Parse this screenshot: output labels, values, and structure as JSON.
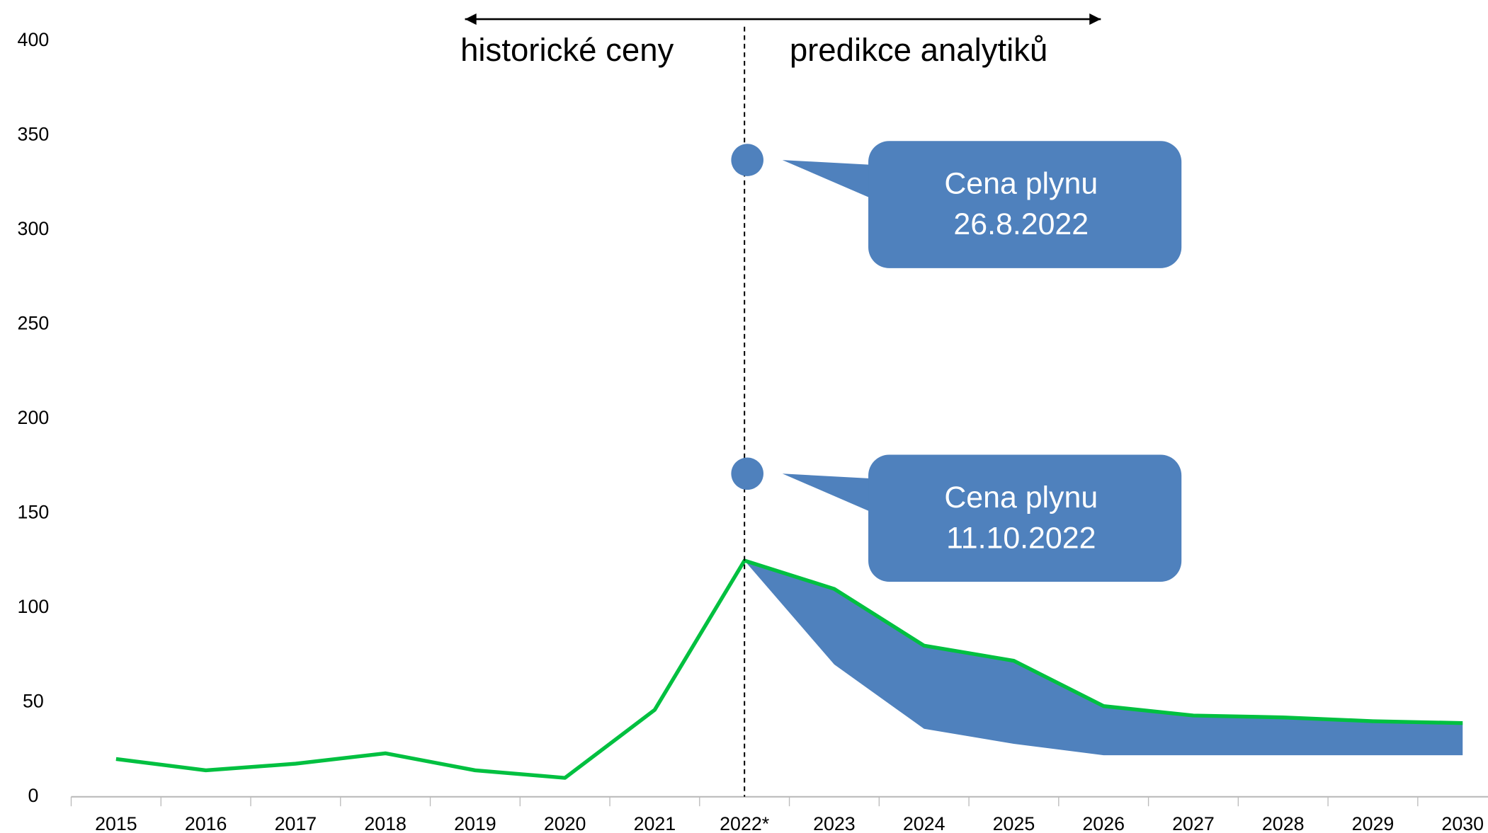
{
  "chart_data": {
    "type": "line",
    "categories": [
      "2015",
      "2016",
      "2017",
      "2018",
      "2019",
      "2020",
      "2021",
      "2022*",
      "2023",
      "2024",
      "2025",
      "2026",
      "2027",
      "2028",
      "2029",
      "2030"
    ],
    "series": [
      {
        "color": "#00c040",
        "values": [
          20,
          14,
          17.5,
          23,
          14,
          10,
          46,
          125,
          110,
          80,
          72,
          48,
          43,
          42,
          40,
          39
        ]
      }
    ],
    "area": {
      "color": "#4f81bd",
      "high": [
        null,
        null,
        null,
        null,
        null,
        null,
        null,
        125,
        110,
        80,
        72,
        48,
        43,
        42,
        40,
        39
      ],
      "low": [
        null,
        null,
        null,
        null,
        null,
        null,
        null,
        125,
        70,
        36,
        28,
        22,
        22,
        22,
        22,
        22
      ]
    },
    "points": [
      {
        "x": "2022*",
        "value": 337,
        "color": "#4f81bd",
        "label": [
          "Cena plynu",
          "26.8.2022"
        ]
      },
      {
        "x": "2022*",
        "value": 171,
        "color": "#4f81bd",
        "label": [
          "Cena plynu",
          "11.10.2022"
        ]
      }
    ],
    "annotations": [
      "historické ceny",
      "predikce analytiků"
    ],
    "ylim": [
      0,
      400
    ],
    "yticks": [
      0,
      50,
      100,
      150,
      200,
      250,
      300,
      350,
      400
    ],
    "grid": false
  }
}
